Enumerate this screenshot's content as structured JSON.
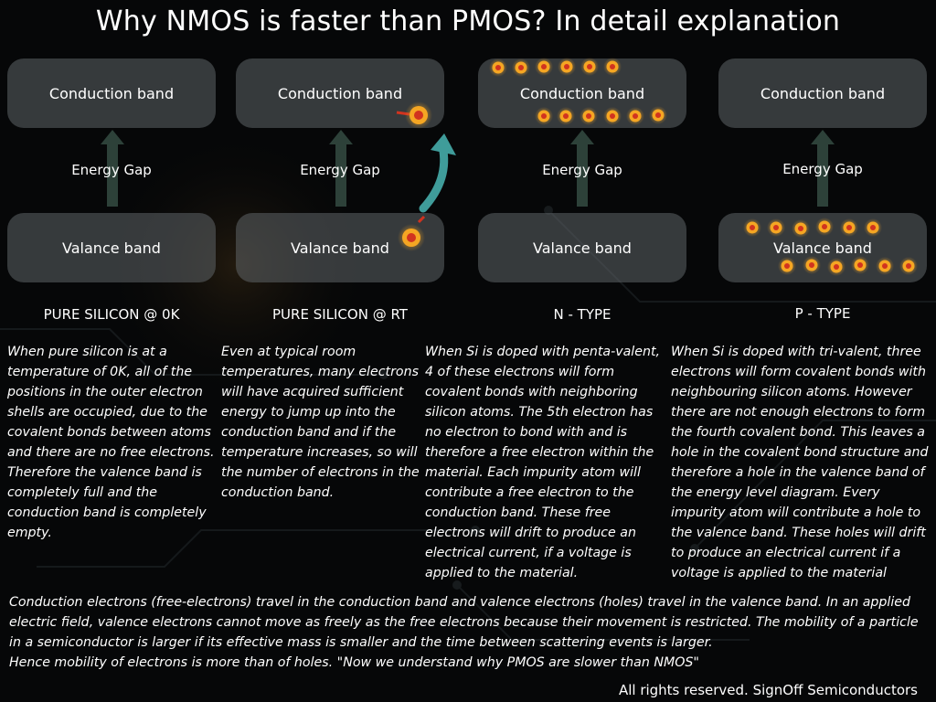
{
  "title": "Why NMOS is faster than PMOS? In detail explanation",
  "band_labels": {
    "conduction": "Conduction band",
    "valence": "Valance band",
    "gap": "Energy Gap"
  },
  "columns": [
    {
      "id": "pure-0k",
      "title": "PURE SILICON @ 0K",
      "description": "When pure silicon is at a temperature of 0K, all of the positions in the outer electron shells are occupied, due to the covalent bonds between atoms and there are no free electrons. Therefore the valence band is completely full and the conduction band is completely empty."
    },
    {
      "id": "pure-rt",
      "title": "PURE SILICON @ RT",
      "description": "Even at typical room temperatures, many electrons will have acquired sufficient energy to jump up into the conduction band and if the temperature increases, so will the number of electrons in the conduction band."
    },
    {
      "id": "n-type",
      "title": "N - TYPE",
      "description": "When Si is doped with penta-valent, 4 of these electrons will form covalent bonds with neighboring silicon atoms. The 5th electron has no electron to bond with and is therefore a free electron within the material. Each impurity atom will contribute a free electron to the conduction band. These free electrons will drift to produce an electrical current, if a voltage is applied to the material."
    },
    {
      "id": "p-type",
      "title": "P - TYPE",
      "description": "When Si is doped with tri-valent, three electrons will form covalent bonds with neighbouring silicon atoms. However there are not enough electrons to form the fourth covalent bond. This leaves a hole in the covalent bond structure and therefore a hole in the valence band of the energy level diagram. Every impurity atom will contribute a hole to the valence band. These holes will drift to produce an electrical current if a voltage is applied to the material"
    }
  ],
  "summary": "Conduction electrons (free-electrons) travel in the conduction band and valence electrons (holes) travel in the valence band. In an applied electric field, valence electrons cannot move as freely as the free electrons because their movement is restricted. The mobility of a particle in a semiconductor is larger if its effective mass is smaller and the time between scattering events is larger.\nHence mobility of electrons is more than of holes. \"Now we understand why PMOS are slower than NMOS\"",
  "footer": "All rights reserved. SignOff Semiconductors",
  "colors": {
    "background": "#060708",
    "band_fill": "#5f6468",
    "gap_arrow": "#2d4139",
    "jump_arrow": "#3f9c9a",
    "carrier": "#f5a623",
    "carrier_core": "#d1331f"
  },
  "icons": [
    "electron-icon",
    "hole-icon",
    "jump-arrow-icon",
    "gap-arrow-icon"
  ]
}
